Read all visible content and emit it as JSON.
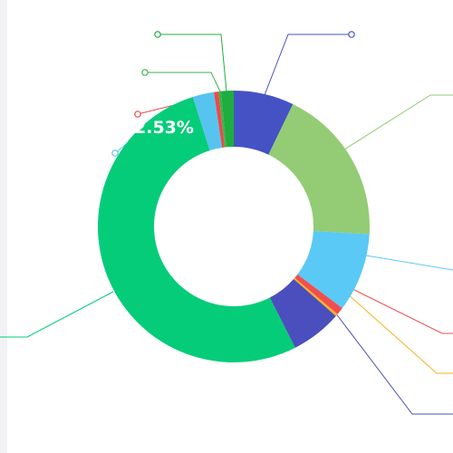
{
  "chart_data": {
    "type": "pie",
    "subtype": "donut",
    "legend": "none",
    "highlight_label": "2.53%",
    "series": [
      {
        "color": "#4552c4",
        "value": 7.2
      },
      {
        "color": "#93cc74",
        "value": 18.8
      },
      {
        "color": "#5ac9f5",
        "value": 9.4
      },
      {
        "color": "#ef4f4f",
        "value": 0.9
      },
      {
        "color": "#f6b11e",
        "value": 0.3
      },
      {
        "color": "#4a4fbd",
        "value": 6.1
      },
      {
        "color": "#05cc79",
        "value": 52.8
      },
      {
        "color": "#57c4f0",
        "value": 2.53
      },
      {
        "color": "#e94b4b",
        "value": 0.55
      },
      {
        "color": "#39b44a",
        "value": 0.3
      },
      {
        "color": "#1ead3f",
        "value": 1.5
      }
    ]
  }
}
